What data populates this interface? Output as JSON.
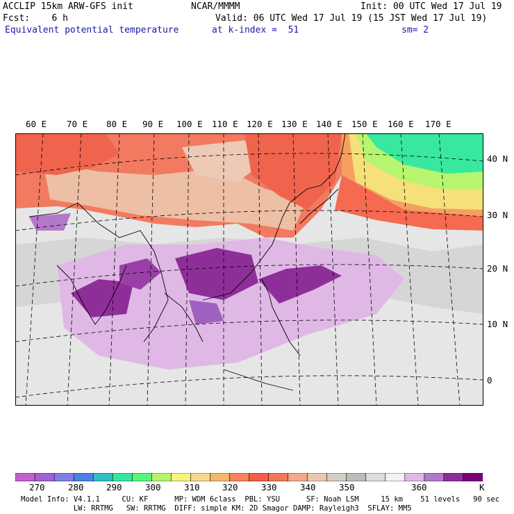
{
  "header": {
    "model": "ACCLIP 15km ARW-GFS init",
    "org": "NCAR/MMMM",
    "init": "Init: 00 UTC Wed 17 Jul 19",
    "fcst": "Fcst:    6 h",
    "valid": "Valid: 06 UTC Wed 17 Jul 19 (15 JST Wed 17 Jul 19)",
    "field": "Equivalent potential temperature",
    "level": "at k-index =  51",
    "smooth": "sm= 2"
  },
  "map": {
    "lon_labels": [
      "60 E",
      "70 E",
      "80 E",
      "90 E",
      "100 E",
      "110 E",
      "120 E",
      "130 E",
      "140 E",
      "150 E",
      "160 E",
      "170 E"
    ],
    "lat_labels": [
      "40 N",
      "30 N",
      "20 N",
      "10 N",
      "0"
    ]
  },
  "colorbar": {
    "unit": "K",
    "labels": [
      "270",
      "280",
      "290",
      "300",
      "310",
      "320",
      "330",
      "340",
      "350",
      "360"
    ],
    "colors": [
      "#c55fcc",
      "#a060d8",
      "#7f7fe6",
      "#4c82e8",
      "#2fbfc4",
      "#32e89c",
      "#57f57a",
      "#b4f56c",
      "#f5f57a",
      "#f7d98c",
      "#f5b76a",
      "#f7845c",
      "#f55c4a",
      "#f07858",
      "#f5a88a",
      "#ecc7b0",
      "#d2cec6",
      "#bcbcbc",
      "#dcdcdc",
      "#f2f2f2",
      "#e0b8e6",
      "#b378c8",
      "#8e2f99",
      "#7a007a"
    ]
  },
  "footer": {
    "line1": "Model Info: V4.1.1     CU: KF      MP: WDM 6class  PBL: YSU      SF: Noah LSM     15 km    51 levels   90 sec",
    "line2": "            LW: RRTMG   SW: RRTMG  DIFF: simple KM: 2D Smagor DAMP: Rayleigh3  SFLAY: MM5"
  }
}
